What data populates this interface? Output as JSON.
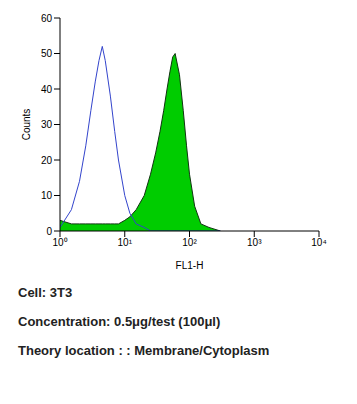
{
  "chart_data": {
    "type": "line",
    "xlabel": "FL1-H",
    "ylabel": "Counts",
    "log": "x",
    "grid": false,
    "xlim": [
      1,
      10000
    ],
    "xticks": [
      {
        "value": 1,
        "label": "10⁰"
      },
      {
        "value": 10,
        "label": "10¹"
      },
      {
        "value": 100,
        "label": "10²"
      },
      {
        "value": 1000,
        "label": "10³"
      },
      {
        "value": 10000,
        "label": "10⁴"
      }
    ],
    "ylim": [
      0,
      60
    ],
    "yticks": [
      0,
      10,
      20,
      30,
      40,
      50,
      60
    ],
    "x": [
      1,
      1.5,
      2,
      2.5,
      3,
      3.5,
      4,
      4.5,
      5,
      6,
      7,
      8,
      10,
      12,
      15,
      20,
      25,
      30,
      35,
      40,
      45,
      50,
      55,
      60,
      70,
      80,
      90,
      100,
      120,
      150,
      200,
      300
    ],
    "series": [
      {
        "type": "line",
        "color": "#3344cc",
        "values": [
          1,
          6,
          14,
          24,
          34,
          42,
          48,
          52,
          48,
          38,
          28,
          20,
          10,
          5,
          2,
          1,
          0,
          0,
          0,
          0,
          0,
          0,
          0,
          0,
          0,
          0,
          0,
          0,
          0,
          0,
          0,
          0
        ]
      },
      {
        "type": "area",
        "color": "#00cc00",
        "values": [
          3,
          2,
          2,
          2,
          2,
          2,
          2,
          2,
          2,
          2,
          2,
          2,
          3,
          4,
          6,
          10,
          16,
          22,
          28,
          34,
          40,
          45,
          49,
          50,
          44,
          34,
          24,
          16,
          7,
          2,
          1,
          0
        ]
      }
    ],
    "annotations": [
      "Cell: 3T3",
      "Concentration: 0.5μg/test (100μl)",
      "Theory location : : Membrane/Cytoplasm"
    ]
  }
}
